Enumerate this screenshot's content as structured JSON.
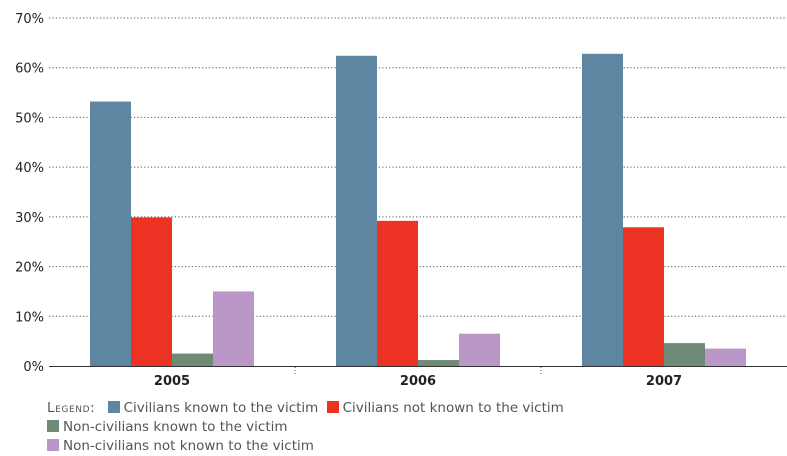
{
  "chart_data": {
    "type": "bar",
    "title": "",
    "xlabel": "",
    "ylabel": "",
    "categories": [
      "2005",
      "2006",
      "2007"
    ],
    "ylim": [
      0,
      70
    ],
    "yticks": [
      0,
      10,
      20,
      30,
      40,
      50,
      60,
      70
    ],
    "ytick_labels": [
      "0%",
      "10%",
      "20%",
      "30%",
      "40%",
      "50%",
      "60%",
      "70%"
    ],
    "grid": true,
    "legend_title": "Legend:",
    "legend_position": "bottom",
    "series": [
      {
        "name": "Civilians known to the victim",
        "color": "#5e86a0",
        "values": [
          53.2,
          62.4,
          62.8
        ]
      },
      {
        "name": "Civilians not known to the victim",
        "color": "#ec3323",
        "values": [
          29.9,
          29.2,
          27.9
        ]
      },
      {
        "name": "Non-civilians known to the victim",
        "color": "#6e8b77",
        "values": [
          2.5,
          1.2,
          4.6
        ]
      },
      {
        "name": "Non-civilians not known to the victim",
        "color": "#ba97c8",
        "values": [
          15.0,
          6.5,
          3.5
        ]
      }
    ]
  }
}
